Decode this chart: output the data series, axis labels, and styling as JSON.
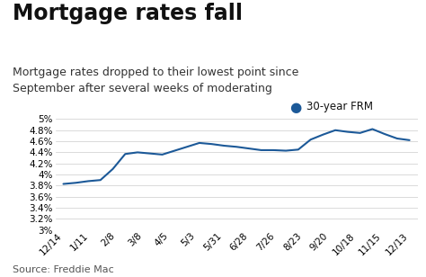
{
  "title": "Mortgage rates fall",
  "subtitle": "Mortgage rates dropped to their lowest point since\nSeptember after several weeks of moderating",
  "source": "Source: Freddie Mac",
  "legend_label": "30-year FRM",
  "line_color": "#1c5998",
  "background_color": "#ffffff",
  "x_labels": [
    "12/14",
    "1/11",
    "2/8",
    "3/8",
    "4/5",
    "5/3",
    "5/31",
    "6/28",
    "7/26",
    "8/23",
    "9/20",
    "10/18",
    "11/15",
    "12/13"
  ],
  "y_values": [
    3.83,
    3.85,
    3.88,
    3.9,
    4.1,
    4.37,
    4.4,
    4.38,
    4.36,
    4.43,
    4.5,
    4.57,
    4.55,
    4.52,
    4.5,
    4.47,
    4.44,
    4.44,
    4.43,
    4.45,
    4.63,
    4.72,
    4.8,
    4.77,
    4.75,
    4.82,
    4.73,
    4.65,
    4.62
  ],
  "ylim": [
    3.0,
    5.1
  ],
  "yticks": [
    3.0,
    3.2,
    3.4,
    3.6,
    3.8,
    4.0,
    4.2,
    4.4,
    4.6,
    4.8,
    5.0
  ],
  "ytick_labels": [
    "3%",
    "3.2%",
    "3.4%",
    "3.6%",
    "3.8%",
    "4%",
    "4.2%",
    "4.4%",
    "4.6%",
    "4.8%",
    "5%"
  ],
  "title_fontsize": 17,
  "subtitle_fontsize": 9,
  "axis_fontsize": 7.5,
  "source_fontsize": 8,
  "legend_fontsize": 8.5
}
